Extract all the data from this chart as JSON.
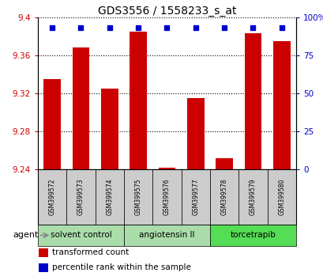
{
  "title": "GDS3556 / 1558233_s_at",
  "samples": [
    "GSM399572",
    "GSM399573",
    "GSM399574",
    "GSM399575",
    "GSM399576",
    "GSM399577",
    "GSM399578",
    "GSM399579",
    "GSM399580"
  ],
  "transformed_counts": [
    9.335,
    9.368,
    9.325,
    9.385,
    9.242,
    9.315,
    9.252,
    9.383,
    9.375
  ],
  "percentile_ranks": [
    93,
    93,
    93,
    93,
    93,
    93,
    93,
    93,
    93
  ],
  "bar_base": 9.24,
  "ylim_left": [
    9.24,
    9.4
  ],
  "ylim_right": [
    0,
    100
  ],
  "yticks_left": [
    9.24,
    9.28,
    9.32,
    9.36,
    9.4
  ],
  "yticks_right": [
    0,
    25,
    50,
    75,
    100
  ],
  "ytick_labels_right": [
    "0",
    "25",
    "50",
    "75",
    "100%"
  ],
  "bar_color": "#cc0000",
  "dot_color": "#0000cc",
  "grid_color": "#000000",
  "group_info": [
    {
      "indices": [
        0,
        1,
        2
      ],
      "label": "solvent control",
      "color": "#aaddaa"
    },
    {
      "indices": [
        3,
        4,
        5
      ],
      "label": "angiotensin II",
      "color": "#aaddaa"
    },
    {
      "indices": [
        6,
        7,
        8
      ],
      "label": "torcetrapib",
      "color": "#55dd55"
    }
  ],
  "legend_items": [
    {
      "label": "transformed count",
      "color": "#cc0000"
    },
    {
      "label": "percentile rank within the sample",
      "color": "#0000cc"
    }
  ],
  "agent_label": "agent",
  "bg_color": "#ffffff",
  "tick_color_left": "#cc0000",
  "tick_color_right": "#0000cc",
  "sample_box_color": "#cccccc",
  "title_fontsize": 10,
  "ytick_fontsize": 7.5,
  "sample_fontsize": 5.5,
  "group_fontsize": 7.5,
  "legend_fontsize": 7.5,
  "agent_fontsize": 8
}
